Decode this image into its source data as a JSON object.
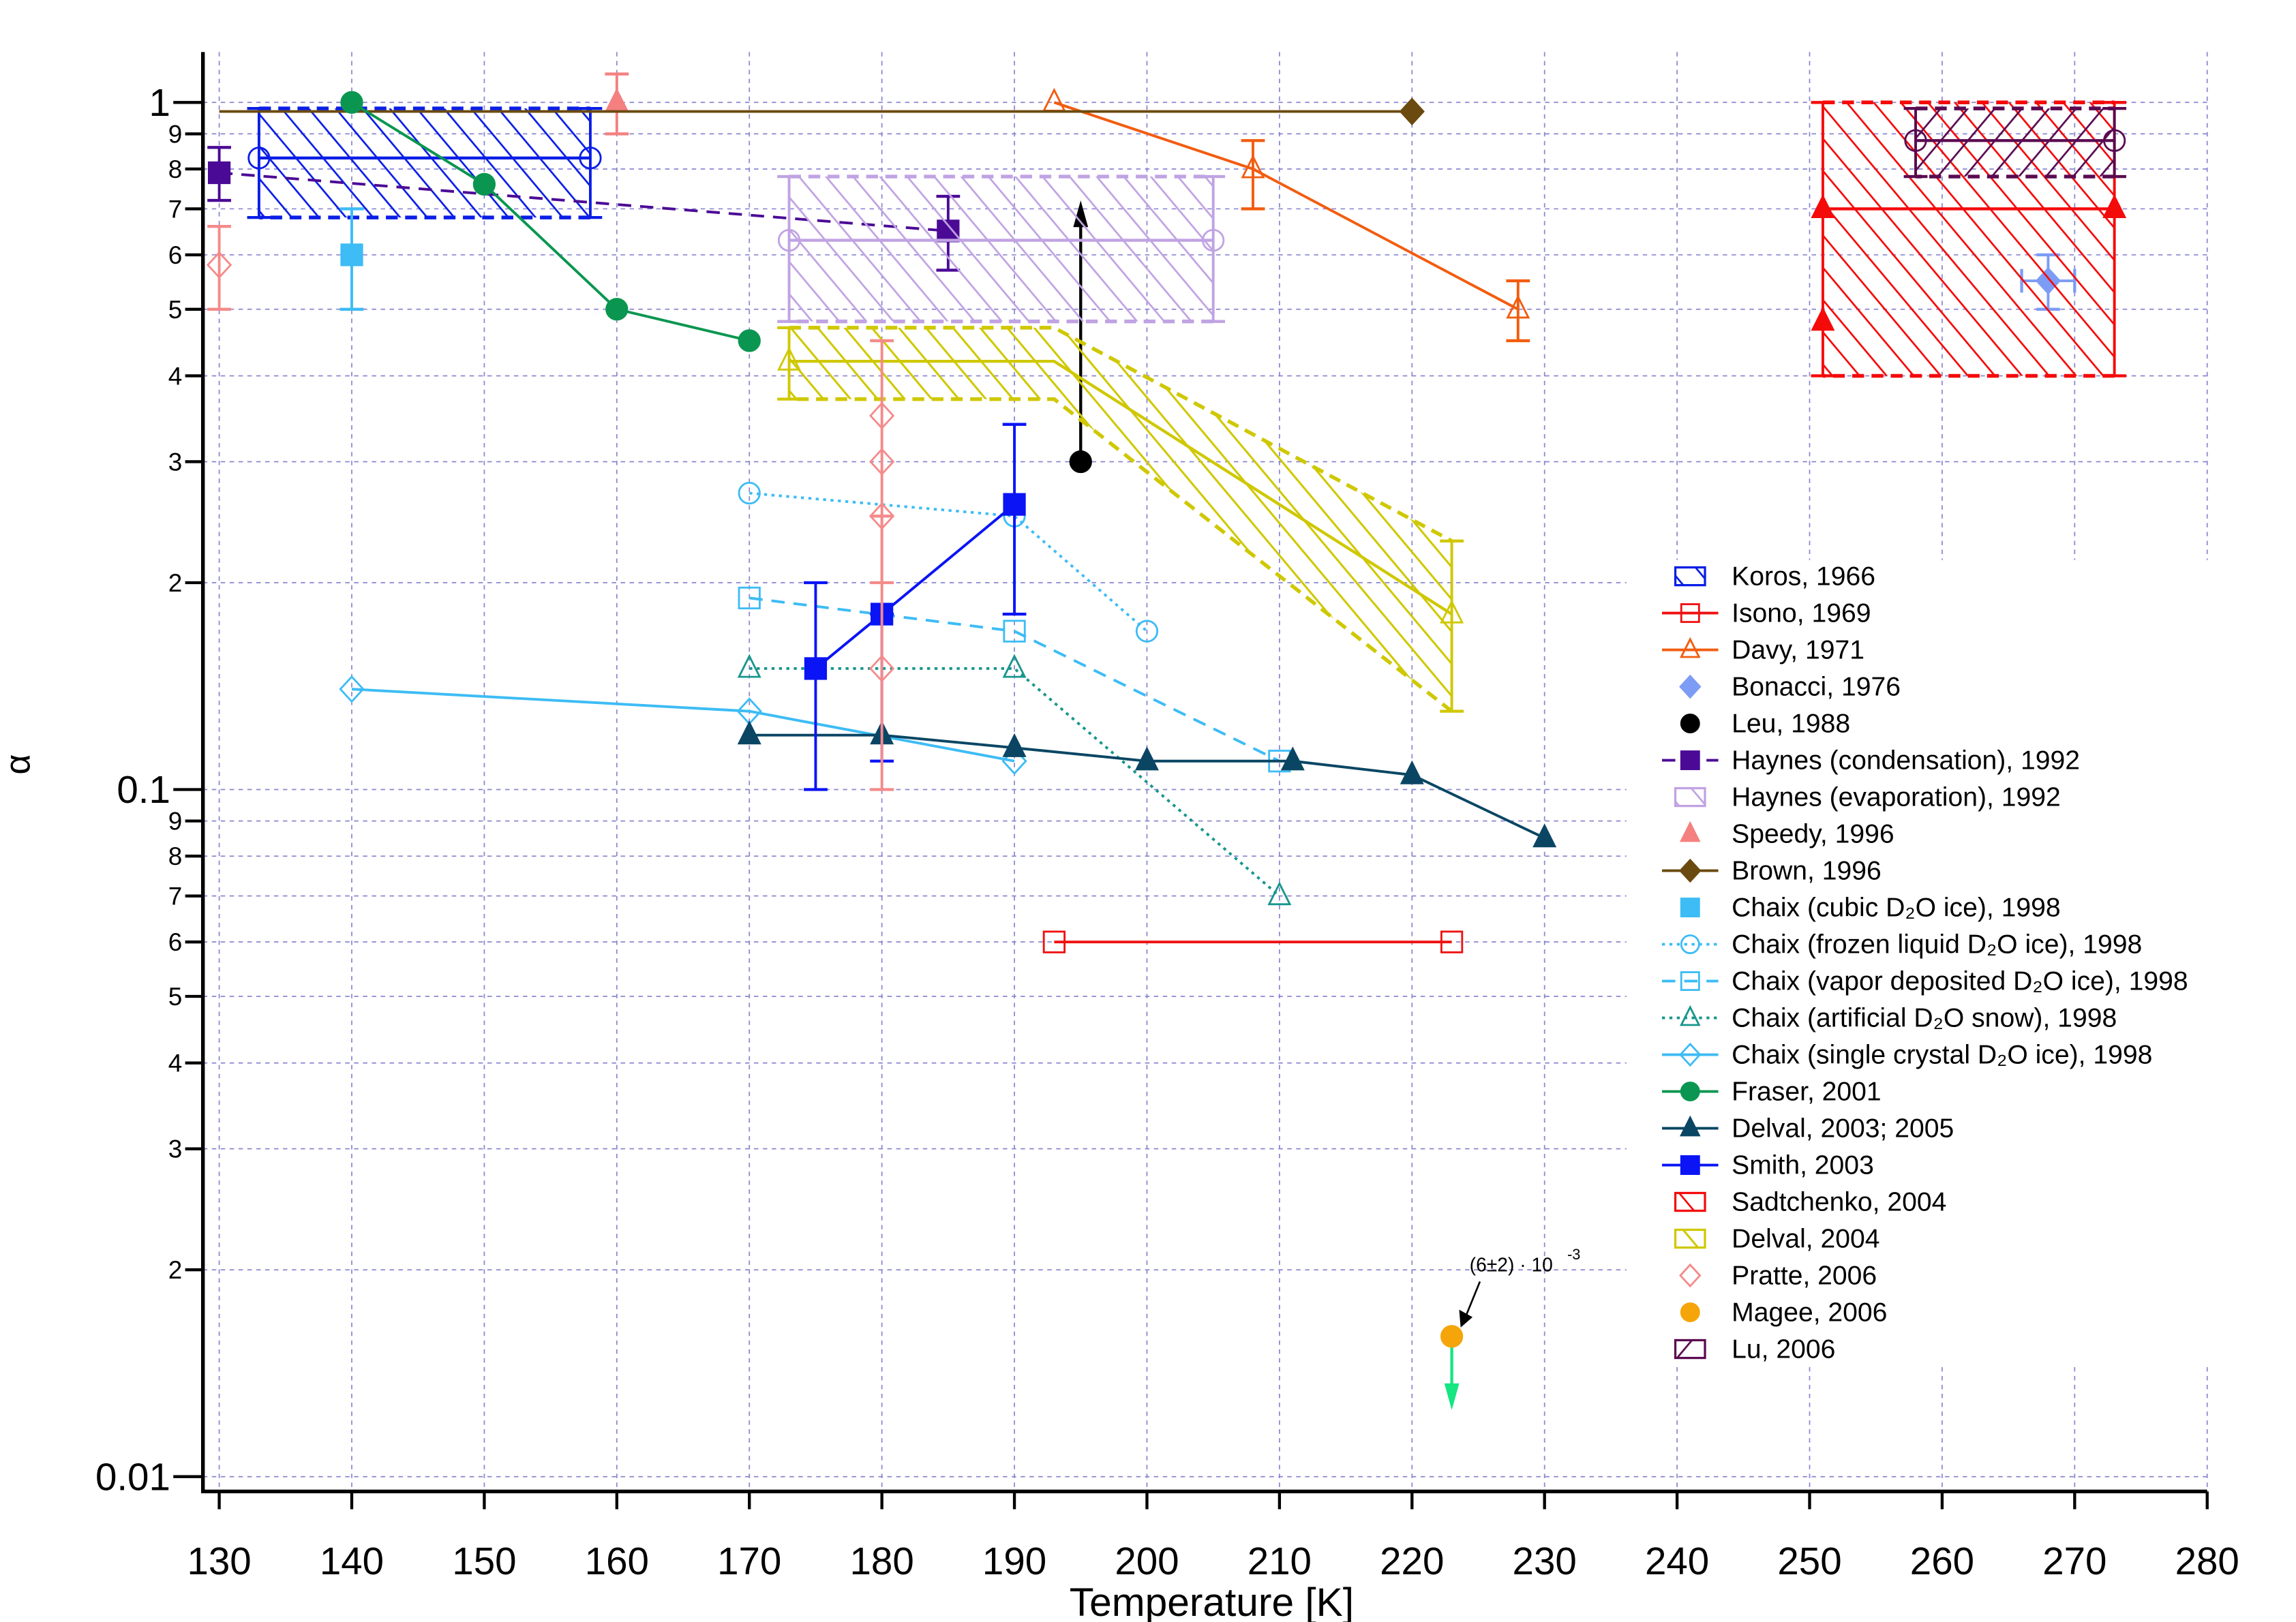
{
  "chart_data": {
    "type": "scatter",
    "xlabel": "Temperature [K]",
    "ylabel": "α",
    "xlim": [
      129,
      280
    ],
    "ylim": [
      0.0098,
      1.18
    ],
    "yscale": "log",
    "grid": true,
    "legend_position": "right",
    "x_ticks": [
      "130",
      "140",
      "150",
      "160",
      "170",
      "180",
      "190",
      "200",
      "210",
      "220",
      "230",
      "240",
      "250",
      "260",
      "270",
      "280"
    ],
    "y_major_ticks": [
      {
        "value": 1,
        "label": "1"
      },
      {
        "value": 0.1,
        "label": "0.1"
      },
      {
        "value": 0.01,
        "label": "0.01"
      }
    ],
    "y_minor_ticks": [
      {
        "value": 0.9,
        "label": "9"
      },
      {
        "value": 0.8,
        "label": "8"
      },
      {
        "value": 0.7,
        "label": "7"
      },
      {
        "value": 0.6,
        "label": "6"
      },
      {
        "value": 0.5,
        "label": "5"
      },
      {
        "value": 0.4,
        "label": "4"
      },
      {
        "value": 0.3,
        "label": "3"
      },
      {
        "value": 0.2,
        "label": "2"
      },
      {
        "value": 0.09,
        "label": "9"
      },
      {
        "value": 0.08,
        "label": "8"
      },
      {
        "value": 0.07,
        "label": "7"
      },
      {
        "value": 0.06,
        "label": "6"
      },
      {
        "value": 0.05,
        "label": "5"
      },
      {
        "value": 0.04,
        "label": "4"
      },
      {
        "value": 0.03,
        "label": "3"
      },
      {
        "value": 0.02,
        "label": "2"
      }
    ],
    "series": [
      {
        "name": "Koros, 1966",
        "kind": "box",
        "color": "#0a1ee6",
        "hatch": "back",
        "marker": "circle",
        "filled": false,
        "box": {
          "x0": 133,
          "x1": 158,
          "ylo": 0.68,
          "yhi": 0.98,
          "mid": 0.83
        }
      },
      {
        "name": "Isono, 1969",
        "kind": "points",
        "color": "#f01010",
        "marker": "square",
        "filled": false,
        "dash": "solid",
        "points": [
          {
            "x": 193,
            "y": 0.06
          },
          {
            "x": 223,
            "y": 0.06
          }
        ]
      },
      {
        "name": "Davy, 1971",
        "kind": "points",
        "color": "#f25c0f",
        "marker": "triangle",
        "filled": false,
        "dash": "solid",
        "points": [
          {
            "x": 193,
            "y": 1.0
          },
          {
            "x": 208,
            "y": 0.8,
            "ylo": 0.7,
            "yhi": 0.88
          },
          {
            "x": 228,
            "y": 0.5,
            "ylo": 0.45,
            "yhi": 0.55
          }
        ]
      },
      {
        "name": "Bonacci, 1976",
        "kind": "points",
        "color": "#7d9cf5",
        "marker": "diamond",
        "filled": true,
        "dash": "none",
        "points": [
          {
            "x": 268,
            "y": 0.55,
            "ylo": 0.5,
            "yhi": 0.6,
            "xlo": 266,
            "xhi": 270
          }
        ]
      },
      {
        "name": "Leu, 1988",
        "kind": "points",
        "color": "#000000",
        "marker": "circle",
        "filled": true,
        "dash": "none",
        "points": [
          {
            "x": 195,
            "y": 0.3
          }
        ],
        "arrow_to": 0.72
      },
      {
        "name": "Haynes (condensation), 1992",
        "kind": "points",
        "color": "#4b0a96",
        "marker": "square",
        "filled": true,
        "dash": "dashed",
        "points": [
          {
            "x": 130,
            "y": 0.79,
            "ylo": 0.72,
            "yhi": 0.86
          },
          {
            "x": 185,
            "y": 0.65,
            "ylo": 0.57,
            "yhi": 0.73
          }
        ]
      },
      {
        "name": "Haynes (evaporation), 1992",
        "kind": "box",
        "color": "#c0a3e3",
        "hatch": "back",
        "marker": "circle",
        "filled": false,
        "box": {
          "x0": 173,
          "x1": 205,
          "ylo": 0.48,
          "yhi": 0.78,
          "mid": 0.63
        }
      },
      {
        "name": "Speedy, 1996",
        "kind": "points",
        "color": "#f58080",
        "marker": "triangle",
        "filled": true,
        "dash": "none",
        "points": [
          {
            "x": 160,
            "y": 1.0,
            "ylo": 0.9,
            "yhi": 1.1
          }
        ]
      },
      {
        "name": "Brown, 1996",
        "kind": "points",
        "color": "#6b4a0f",
        "marker": "diamond",
        "filled": true,
        "dash": "solid",
        "line_from": 130,
        "points": [
          {
            "x": 220,
            "y": 0.97
          }
        ]
      },
      {
        "name": "Chaix (cubic D₂O ice), 1998",
        "kind": "points",
        "color": "#3dbcf5",
        "marker": "square",
        "filled": true,
        "dash": "none",
        "points": [
          {
            "x": 140,
            "y": 0.6,
            "ylo": 0.5,
            "yhi": 0.7
          }
        ]
      },
      {
        "name": "Chaix (frozen liquid D₂O ice), 1998",
        "kind": "points",
        "color": "#3dbcf5",
        "marker": "circle",
        "filled": false,
        "dash": "dotted",
        "points": [
          {
            "x": 170,
            "y": 0.27
          },
          {
            "x": 190,
            "y": 0.25
          },
          {
            "x": 200,
            "y": 0.17
          }
        ]
      },
      {
        "name": "Chaix (vapor deposited D₂O ice), 1998",
        "kind": "points",
        "color": "#3dbcf5",
        "marker": "square",
        "filled": false,
        "dash": "dashed",
        "points": [
          {
            "x": 170,
            "y": 0.19
          },
          {
            "x": 190,
            "y": 0.17
          },
          {
            "x": 210,
            "y": 0.11
          }
        ]
      },
      {
        "name": "Chaix (artificial  D₂O snow), 1998",
        "kind": "points",
        "color": "#17968c",
        "marker": "triangle",
        "filled": false,
        "dash": "dotted",
        "points": [
          {
            "x": 170,
            "y": 0.15
          },
          {
            "x": 190,
            "y": 0.15
          },
          {
            "x": 210,
            "y": 0.07
          }
        ]
      },
      {
        "name": "Chaix (single crystal D₂O ice), 1998",
        "kind": "points",
        "color": "#3dbcf5",
        "marker": "diamond",
        "filled": false,
        "dash": "solid",
        "points": [
          {
            "x": 140,
            "y": 0.14
          },
          {
            "x": 170,
            "y": 0.13
          },
          {
            "x": 190,
            "y": 0.11
          }
        ]
      },
      {
        "name": "Fraser, 2001",
        "kind": "points",
        "color": "#0a9650",
        "marker": "circle",
        "filled": true,
        "dash": "solid",
        "points": [
          {
            "x": 140,
            "y": 1.0
          },
          {
            "x": 150,
            "y": 0.76
          },
          {
            "x": 160,
            "y": 0.5
          },
          {
            "x": 170,
            "y": 0.45
          }
        ]
      },
      {
        "name": "Delval, 2003; 2005",
        "kind": "points",
        "color": "#0a4664",
        "marker": "triangle",
        "filled": true,
        "dash": "solid",
        "points": [
          {
            "x": 170,
            "y": 0.12
          },
          {
            "x": 180,
            "y": 0.12
          },
          {
            "x": 190,
            "y": 0.115
          },
          {
            "x": 200,
            "y": 0.11
          },
          {
            "x": 211,
            "y": 0.11
          },
          {
            "x": 220,
            "y": 0.105
          },
          {
            "x": 230,
            "y": 0.085
          }
        ]
      },
      {
        "name": "Smith, 2003",
        "kind": "points",
        "color": "#0a14f5",
        "marker": "square",
        "filled": true,
        "dash": "solid",
        "points": [
          {
            "x": 175,
            "y": 0.15,
            "ylo": 0.1,
            "yhi": 0.2
          },
          {
            "x": 180,
            "y": 0.18,
            "ylo": 0.11,
            "yhi": 0.18
          },
          {
            "x": 190,
            "y": 0.26,
            "ylo": 0.18,
            "yhi": 0.34
          }
        ]
      },
      {
        "name": "Sadtchenko, 2004",
        "kind": "box",
        "color": "#f50a0a",
        "hatch": "back",
        "marker": "triangle",
        "filled": true,
        "box": {
          "x0": 251,
          "x1": 273,
          "ylo": 0.4,
          "yhi": 1.0,
          "mid": 0.7
        },
        "extra_points": [
          {
            "x": 251,
            "y": 0.48
          }
        ]
      },
      {
        "name": "Delval, 2004",
        "kind": "band",
        "color": "#cfc800",
        "hatch": "back",
        "marker": "triangle",
        "filled": false,
        "band": {
          "x": [
            173,
            193,
            223
          ],
          "lo": [
            0.37,
            0.37,
            0.13
          ],
          "hi": [
            0.47,
            0.47,
            0.23
          ],
          "mid": [
            0.42,
            0.42,
            0.18
          ]
        }
      },
      {
        "name": "Pratte, 2006",
        "kind": "points",
        "color": "#f58a8a",
        "marker": "diamond",
        "filled": false,
        "dash": "none",
        "points": [
          {
            "x": 130,
            "y": 0.58,
            "ylo": 0.5,
            "yhi": 0.66
          },
          {
            "x": 180,
            "y": 0.35,
            "ylo": 0.1,
            "yhi": 0.45
          },
          {
            "x": 180,
            "y": 0.3
          },
          {
            "x": 180,
            "y": 0.25,
            "ylo": 0.2,
            "yhi": 0.25
          },
          {
            "x": 180,
            "y": 0.15
          }
        ]
      },
      {
        "name": "Magee, 2006",
        "kind": "points",
        "color": "#f5a50a",
        "marker": "circle",
        "filled": true,
        "dash": "none",
        "points": [
          {
            "x": 223,
            "y": 0.016
          }
        ],
        "arrow_to": 0.0125,
        "arrow_color": "#14e682"
      },
      {
        "name": "Lu, 2006",
        "kind": "box",
        "color": "#5a0a50",
        "hatch": "fwd",
        "marker": "circle",
        "filled": false,
        "box": {
          "x0": 258,
          "x1": 273,
          "ylo": 0.78,
          "yhi": 0.98,
          "mid": 0.88
        }
      }
    ],
    "annotations": [
      {
        "text": "(6±2) · 10",
        "superscript": "-3",
        "points_to": {
          "x": 223,
          "y": 0.016
        }
      }
    ]
  }
}
